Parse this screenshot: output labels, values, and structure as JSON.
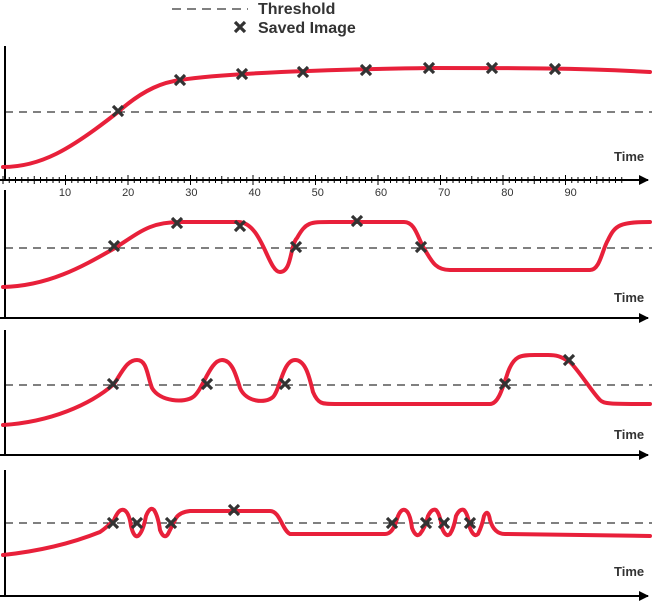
{
  "legend": {
    "threshold_label": "Threshold",
    "saved_label": "Saved Image"
  },
  "panels": [
    {
      "id": 1,
      "axis_label": "Time",
      "show_ticks": true
    },
    {
      "id": 2,
      "axis_label": "Time",
      "show_ticks": false
    },
    {
      "id": 3,
      "axis_label": "Time",
      "show_ticks": false
    },
    {
      "id": 4,
      "axis_label": "Time",
      "show_ticks": false
    }
  ],
  "tick_labels": [
    "10",
    "20",
    "30",
    "40",
    "50",
    "60",
    "70",
    "80",
    "90"
  ],
  "colors": {
    "signal": "#e8203a",
    "axis": "#000000",
    "threshold": "#000000",
    "marker": "#333333",
    "text": "#333333"
  }
}
